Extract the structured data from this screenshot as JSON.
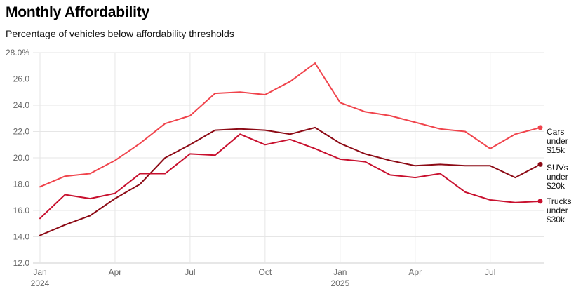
{
  "title": "Monthly Affordability",
  "subtitle": "Percentage of vehicles below affordability thresholds",
  "chart_data": {
    "type": "line",
    "title": "Monthly Affordability",
    "subtitle": "Percentage of vehicles below affordability thresholds",
    "xlabel": "",
    "ylabel": "",
    "ylim": [
      12,
      28
    ],
    "y_ticks": [
      "12.0",
      "14.0",
      "16.0",
      "18.0",
      "20.0",
      "22.0",
      "24.0",
      "26.0",
      "28.0%"
    ],
    "x": [
      "2024-01",
      "2024-02",
      "2024-03",
      "2024-04",
      "2024-05",
      "2024-06",
      "2024-07",
      "2024-08",
      "2024-09",
      "2024-10",
      "2024-11",
      "2024-12",
      "2025-01",
      "2025-02",
      "2025-03",
      "2025-04",
      "2025-05",
      "2025-06",
      "2025-07",
      "2025-08",
      "2025-09"
    ],
    "x_ticks": [
      {
        "index": 0,
        "label": "Jan",
        "year": "2024"
      },
      {
        "index": 3,
        "label": "Apr",
        "year": ""
      },
      {
        "index": 6,
        "label": "Jul",
        "year": ""
      },
      {
        "index": 9,
        "label": "Oct",
        "year": ""
      },
      {
        "index": 12,
        "label": "Jan",
        "year": "2025"
      },
      {
        "index": 15,
        "label": "Apr",
        "year": ""
      },
      {
        "index": 18,
        "label": "Jul",
        "year": ""
      }
    ],
    "grid": true,
    "legend": "right, inline at line ends",
    "series": [
      {
        "name": "Cars under $15k",
        "legend_lines": [
          "Cars",
          "under",
          "$15k"
        ],
        "color": "#f0444c",
        "values": [
          17.8,
          18.6,
          18.8,
          19.8,
          21.1,
          22.6,
          23.2,
          24.9,
          25.0,
          24.8,
          25.8,
          27.2,
          24.2,
          23.5,
          23.2,
          22.7,
          22.2,
          22.0,
          20.7,
          21.8,
          22.3
        ]
      },
      {
        "name": "SUVs under $20k",
        "legend_lines": [
          "SUVs",
          "under",
          "$20k"
        ],
        "color": "#8c0a15",
        "values": [
          14.1,
          14.9,
          15.6,
          16.9,
          18.0,
          20.0,
          21.0,
          22.1,
          22.2,
          22.1,
          21.8,
          22.3,
          21.1,
          20.3,
          19.8,
          19.4,
          19.5,
          19.4,
          19.4,
          18.5,
          19.5
        ]
      },
      {
        "name": "Trucks under $30k",
        "legend_lines": [
          "Trucks",
          "under",
          "$30k"
        ],
        "color": "#c8102e",
        "values": [
          15.4,
          17.2,
          16.9,
          17.3,
          18.8,
          18.8,
          20.3,
          20.2,
          21.8,
          21.0,
          21.4,
          20.7,
          19.9,
          19.7,
          18.7,
          18.5,
          18.8,
          17.4,
          16.8,
          16.6,
          16.7
        ]
      }
    ]
  }
}
